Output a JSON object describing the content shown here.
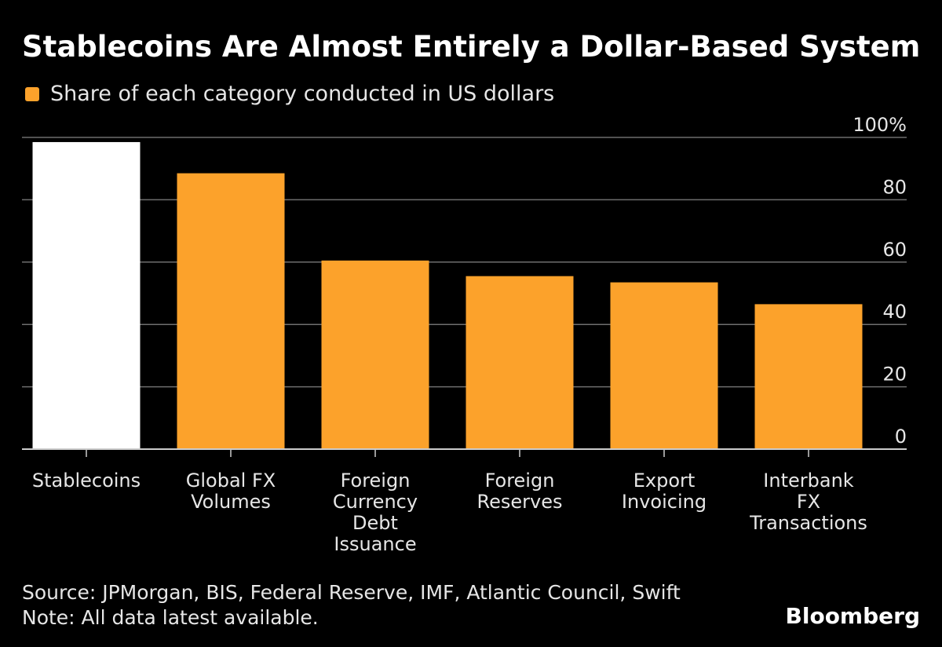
{
  "chart_data": {
    "type": "bar",
    "title": "Stablecoins Are Almost Entirely a Dollar-Based System",
    "legend": [
      "Share of each category conducted in US dollars"
    ],
    "categories": [
      [
        "Stablecoins"
      ],
      [
        "Global FX",
        "Volumes"
      ],
      [
        "Foreign",
        "Currency",
        "Debt",
        "Issuance"
      ],
      [
        "Foreign",
        "Reserves"
      ],
      [
        "Export",
        "Invoicing"
      ],
      [
        "Interbank",
        "FX",
        "Transactions"
      ]
    ],
    "series": [
      {
        "name": "Share of each category conducted in US dollars",
        "values": [
          98.5,
          88.5,
          60.5,
          55.5,
          53.5,
          46.5
        ]
      }
    ],
    "ylim": [
      0,
      100
    ],
    "yticks": [
      0,
      20,
      40,
      60,
      80,
      100
    ],
    "ytick_labels": [
      "0",
      "20",
      "40",
      "60",
      "80",
      "100%"
    ],
    "grid": true,
    "colors": {
      "highlight": "#ffffff",
      "bar": "#fca22b",
      "grid": "#6e6e6e",
      "axis": "#cccccc",
      "background": "#000000"
    },
    "highlight_index": 0
  },
  "footer": {
    "source": "Source: JPMorgan, BIS, Federal Reserve, IMF, Atlantic Council, Swift",
    "note": "Note: All data latest available.",
    "brand": "Bloomberg"
  }
}
